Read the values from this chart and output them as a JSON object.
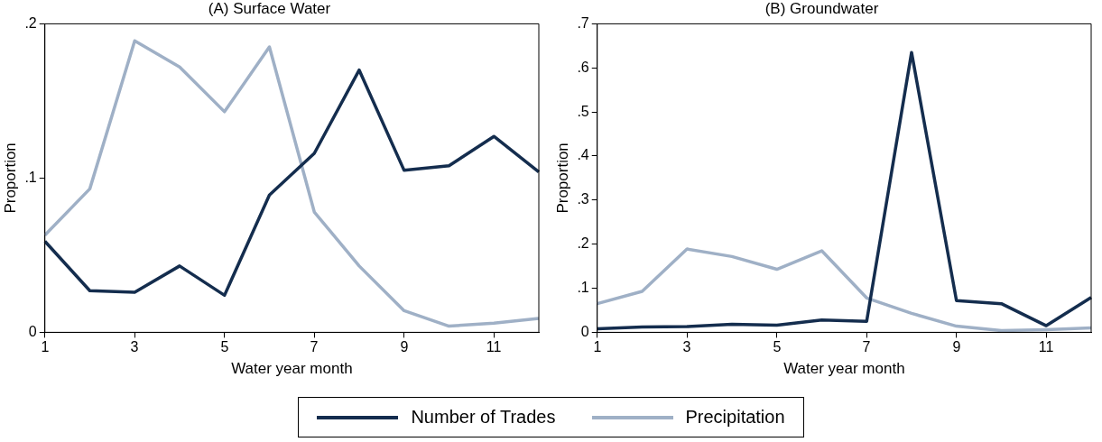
{
  "chart_data": [
    {
      "type": "line",
      "title": "(A) Surface Water",
      "xlabel": "Water year month",
      "ylabel": "Proportion",
      "x": [
        1,
        2,
        3,
        4,
        5,
        6,
        7,
        8,
        9,
        10,
        11,
        12
      ],
      "xlim": [
        1,
        12
      ],
      "xticks": [
        1,
        3,
        5,
        7,
        9,
        11
      ],
      "ylim": [
        0,
        0.2
      ],
      "yticks": [
        {
          "value": 0,
          "label": "0"
        },
        {
          "value": 0.1,
          "label": ".1"
        },
        {
          "value": 0.2,
          "label": ".2"
        }
      ],
      "grid": false,
      "legend": "bottom",
      "marker": "none",
      "line_style": "solid",
      "series": [
        {
          "name": "Number of Trades",
          "color": "#142d4e",
          "values": [
            0.059,
            0.027,
            0.026,
            0.043,
            0.024,
            0.089,
            0.116,
            0.17,
            0.105,
            0.108,
            0.127,
            0.104
          ]
        },
        {
          "name": "Precipitation",
          "color": "#9fb0c6",
          "values": [
            0.063,
            0.093,
            0.189,
            0.172,
            0.143,
            0.185,
            0.078,
            0.043,
            0.014,
            0.004,
            0.006,
            0.009
          ]
        }
      ]
    },
    {
      "type": "line",
      "title": "(B) Groundwater",
      "xlabel": "Water year month",
      "ylabel": "Proportion",
      "x": [
        1,
        2,
        3,
        4,
        5,
        6,
        7,
        8,
        9,
        10,
        11,
        12
      ],
      "xlim": [
        1,
        12
      ],
      "xticks": [
        1,
        3,
        5,
        7,
        9,
        11
      ],
      "ylim": [
        0,
        0.7
      ],
      "yticks": [
        {
          "value": 0,
          "label": "0"
        },
        {
          "value": 0.1,
          "label": ".1"
        },
        {
          "value": 0.2,
          "label": ".2"
        },
        {
          "value": 0.3,
          "label": ".3"
        },
        {
          "value": 0.4,
          "label": ".4"
        },
        {
          "value": 0.5,
          "label": ".5"
        },
        {
          "value": 0.6,
          "label": ".6"
        },
        {
          "value": 0.7,
          "label": ".7"
        }
      ],
      "grid": false,
      "legend": "bottom",
      "marker": "none",
      "line_style": "solid",
      "series": [
        {
          "name": "Number of Trades",
          "color": "#142d4e",
          "values": [
            0.008,
            0.012,
            0.013,
            0.018,
            0.016,
            0.028,
            0.025,
            0.635,
            0.072,
            0.065,
            0.015,
            0.079
          ]
        },
        {
          "name": "Precipitation",
          "color": "#9fb0c6",
          "values": [
            0.065,
            0.093,
            0.189,
            0.172,
            0.143,
            0.185,
            0.078,
            0.043,
            0.014,
            0.004,
            0.006,
            0.01
          ]
        }
      ]
    }
  ]
}
